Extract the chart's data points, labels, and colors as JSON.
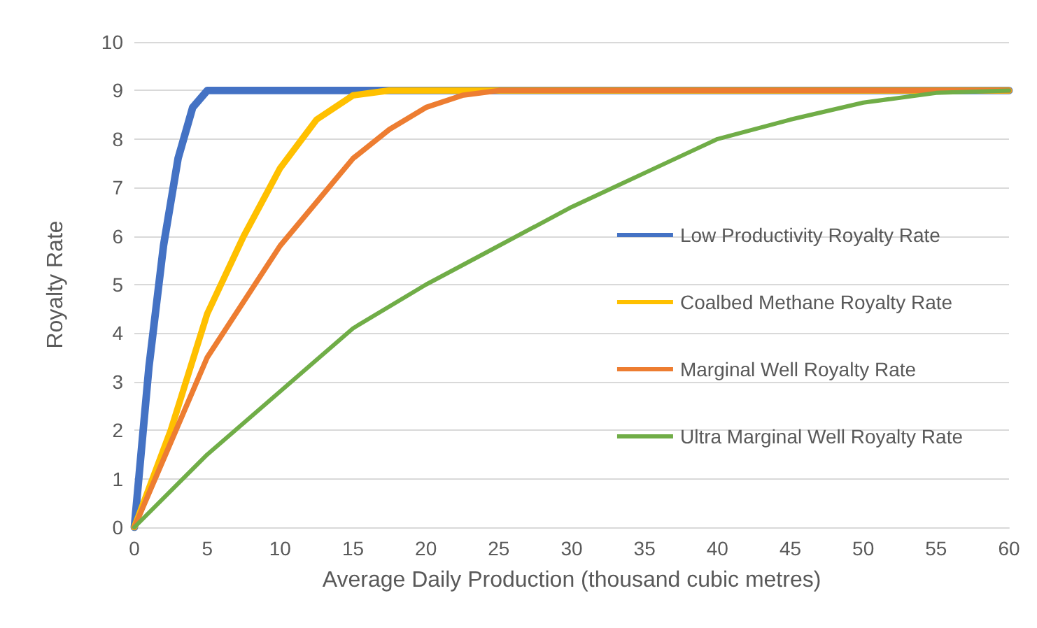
{
  "chart_data": {
    "type": "line",
    "xlabel": "Average Daily Production (thousand cubic metres)",
    "ylabel": "Royalty Rate",
    "xlim": [
      0,
      60
    ],
    "xticks": [
      0,
      5,
      10,
      15,
      20,
      25,
      30,
      35,
      40,
      45,
      50,
      55,
      60
    ],
    "ylim": [
      0,
      10
    ],
    "yticks": [
      0,
      1,
      2,
      3,
      4,
      5,
      6,
      7,
      8,
      9,
      10
    ],
    "grid": "y",
    "legend": "right",
    "marker": "none",
    "line_style": "solid",
    "series": [
      {
        "name": "Low Productivity Royalty Rate",
        "color": "#4472c4",
        "x": [
          0,
          1,
          2,
          3,
          4,
          5,
          60
        ],
        "values": [
          0,
          3.3,
          5.8,
          7.6,
          8.65,
          9,
          9
        ]
      },
      {
        "name": "Coalbed Methane Royalty Rate",
        "color": "#ffc000",
        "x": [
          0,
          2.5,
          5,
          7.5,
          10,
          12.5,
          15,
          17.5,
          60
        ],
        "values": [
          0,
          2,
          4.4,
          6,
          7.4,
          8.4,
          8.9,
          9,
          9
        ]
      },
      {
        "name": "Marginal Well Royalty Rate",
        "color": "#ed7d31",
        "x": [
          0,
          5,
          10,
          15,
          17.5,
          20,
          22.5,
          25,
          60
        ],
        "values": [
          0,
          3.5,
          5.8,
          7.6,
          8.2,
          8.65,
          8.9,
          9,
          9
        ]
      },
      {
        "name": "Ultra Marginal Well Royalty Rate",
        "color": "#70ad47",
        "x": [
          0,
          5,
          10,
          15,
          20,
          25,
          30,
          35,
          40,
          45,
          50,
          55,
          60
        ],
        "values": [
          0,
          1.5,
          2.8,
          4.1,
          5,
          5.8,
          6.6,
          7.3,
          8,
          8.4,
          8.75,
          8.95,
          9
        ]
      }
    ]
  }
}
